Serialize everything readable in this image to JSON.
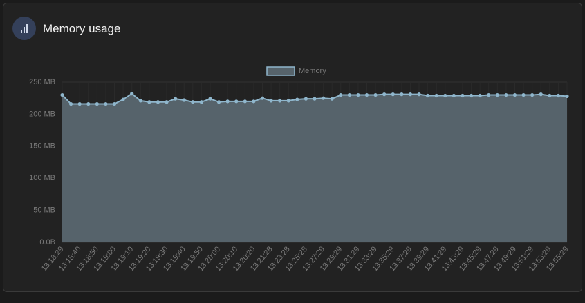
{
  "header": {
    "title": "Memory usage"
  },
  "chart_data": {
    "type": "area",
    "series": [
      {
        "name": "Memory",
        "color": "#8fb6cc",
        "fill": "#56636b",
        "values": [
          230,
          216,
          216,
          216,
          216,
          216,
          216,
          223,
          232,
          221,
          219,
          219,
          219,
          224,
          222,
          219,
          219,
          224,
          219,
          220,
          220,
          220,
          220,
          225,
          221,
          221,
          221,
          223,
          224,
          224,
          225,
          224,
          230,
          230,
          230,
          230,
          230,
          231,
          231,
          231,
          231,
          231,
          229,
          229,
          229,
          229,
          229,
          229,
          229,
          230,
          230,
          230,
          230,
          230,
          230,
          231,
          229,
          229,
          228
        ]
      }
    ],
    "categories": [
      "13:18:29",
      null,
      "13:18:40",
      null,
      "13:18:50",
      null,
      "13:19:00",
      null,
      "13:19:10",
      null,
      "13:19:20",
      null,
      "13:19:30",
      null,
      "13:19:40",
      null,
      "13:19:50",
      null,
      "13:20:00",
      null,
      "13:20:10",
      null,
      "13:20:20",
      null,
      "13:21:28",
      null,
      "13:23:28",
      null,
      "13:25:28",
      null,
      "13:27:29",
      null,
      "13:29:29",
      null,
      "13:31:29",
      null,
      "13:33:29",
      null,
      "13:35:29",
      null,
      "13:37:29",
      null,
      "13:39:29",
      null,
      "13:41:29",
      null,
      "13:43:29",
      null,
      "13:45:29",
      null,
      "13:47:29",
      null,
      "13:49:29",
      null,
      "13:51:29",
      null,
      "13:53:29",
      null,
      "13:55:29"
    ],
    "ylim": [
      0,
      250
    ],
    "yticks": [
      {
        "value": 0,
        "label": "0.0B"
      },
      {
        "value": 50,
        "label": "50 MB"
      },
      {
        "value": 100,
        "label": "100 MB"
      },
      {
        "value": 150,
        "label": "150 MB"
      },
      {
        "value": 200,
        "label": "200 MB"
      },
      {
        "value": 250,
        "label": "250 MB"
      }
    ],
    "grid": true
  }
}
